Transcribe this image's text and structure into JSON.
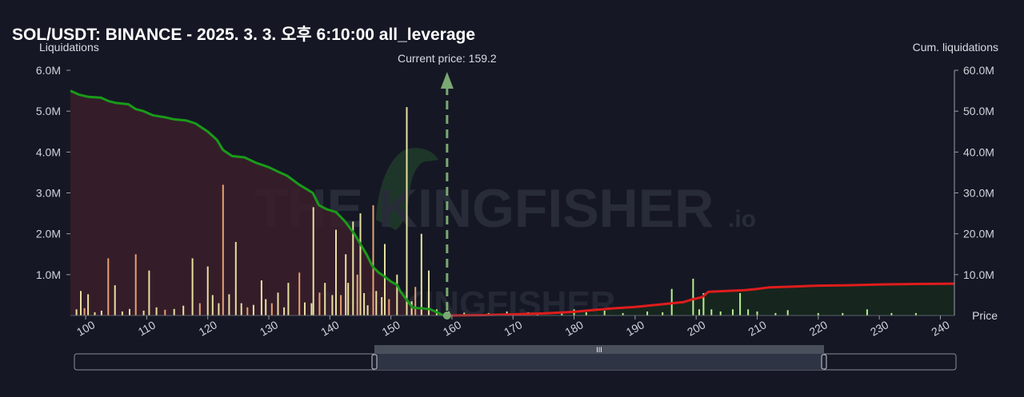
{
  "title": "SOL/USDT: BINANCE - 2025. 3. 3. 오후 6:10:00 all_leverage",
  "chart_data": {
    "type": "bar",
    "title": "SOL/USDT: BINANCE - 2025. 3. 3. 오후 6:10:00 all_leverage",
    "left_axis_label": "Liquidations",
    "right_axis_label": "Cum. liquidations",
    "xlabel": "Price",
    "current_price_label": "Current price: 159.2",
    "current_price": 159.2,
    "xlim": [
      97.5,
      242.3
    ],
    "ylim_left": [
      0,
      6000000
    ],
    "ylim_right": [
      0,
      60000000
    ],
    "x_ticks": [
      100,
      110,
      120,
      130,
      140,
      150,
      160,
      170,
      180,
      190,
      200,
      210,
      220,
      230,
      240
    ],
    "x_tick_labels": [
      "100",
      "110",
      "120",
      "130",
      "140",
      "150",
      "160",
      "170",
      "180",
      "190",
      "200",
      "210",
      "220",
      "230",
      "240"
    ],
    "y_left_ticks": [
      1000000,
      2000000,
      3000000,
      4000000,
      5000000,
      6000000
    ],
    "y_left_tick_labels": [
      "1.0M",
      "2.0M",
      "3.0M",
      "4.0M",
      "5.0M",
      "6.0M"
    ],
    "y_right_ticks": [
      10000000,
      20000000,
      30000000,
      40000000,
      50000000,
      60000000
    ],
    "y_right_tick_labels": [
      "10.0M",
      "20.0M",
      "30.0M",
      "40.0M",
      "50.0M",
      "60.0M"
    ],
    "watermark": "THE KINGFISHER",
    "watermark_suffix": ".io",
    "colors": {
      "long_bar": "#e8e0a0",
      "long_bar_alt": "#e8a070",
      "short_bar": "#b8ef90",
      "long_cum_line": "#1a9a1a",
      "short_cum_line": "#e01c1c",
      "long_fill": "#3a1f2a",
      "short_fill": "#16281e",
      "current_price_line": "#7aa873"
    },
    "series": [
      {
        "name": "long_liquidations",
        "points": [
          [
            98.5,
            150000
          ],
          [
            99.2,
            600000
          ],
          [
            99.8,
            180000
          ],
          [
            100.4,
            520000
          ],
          [
            101.5,
            80000
          ],
          [
            102.6,
            120000
          ],
          [
            103.7,
            1400000
          ],
          [
            104.8,
            740000
          ],
          [
            106.0,
            100000
          ],
          [
            107.2,
            160000
          ],
          [
            108.2,
            1500000
          ],
          [
            109.5,
            120000
          ],
          [
            110.4,
            1100000
          ],
          [
            111.6,
            200000
          ],
          [
            113.0,
            140000
          ],
          [
            114.5,
            160000
          ],
          [
            116.0,
            240000
          ],
          [
            117.5,
            1400000
          ],
          [
            118.7,
            300000
          ],
          [
            120.0,
            1200000
          ],
          [
            120.8,
            500000
          ],
          [
            121.8,
            300000
          ],
          [
            122.5,
            3200000
          ],
          [
            123.5,
            520000
          ],
          [
            124.6,
            1800000
          ],
          [
            125.5,
            300000
          ],
          [
            126.5,
            200000
          ],
          [
            127.5,
            260000
          ],
          [
            128.8,
            860000
          ],
          [
            129.5,
            400000
          ],
          [
            130.5,
            300000
          ],
          [
            131.5,
            560000
          ],
          [
            132.5,
            200000
          ],
          [
            133.2,
            800000
          ],
          [
            135.0,
            1050000
          ],
          [
            135.9,
            320000
          ],
          [
            137.0,
            300000
          ],
          [
            137.3,
            2650000
          ],
          [
            138.3,
            560000
          ],
          [
            139.2,
            800000
          ],
          [
            140.4,
            500000
          ],
          [
            141.0,
            2100000
          ],
          [
            141.8,
            500000
          ],
          [
            142.6,
            1500000
          ],
          [
            143.0,
            800000
          ],
          [
            143.8,
            2300000
          ],
          [
            144.5,
            1000000
          ],
          [
            145.0,
            2500000
          ],
          [
            145.6,
            550000
          ],
          [
            146.2,
            250000
          ],
          [
            147.1,
            2700000
          ],
          [
            147.6,
            600000
          ],
          [
            148.5,
            450000
          ],
          [
            149.0,
            1750000
          ],
          [
            149.7,
            400000
          ],
          [
            151.0,
            1000000
          ],
          [
            152.6,
            5100000
          ],
          [
            153.4,
            350000
          ],
          [
            154.0,
            700000
          ],
          [
            155.0,
            2000000
          ],
          [
            156.2,
            1100000
          ],
          [
            157.5,
            150000
          ]
        ]
      },
      {
        "name": "short_liquidations",
        "points": [
          [
            159.5,
            100000
          ],
          [
            162.0,
            70000
          ],
          [
            166.0,
            60000
          ],
          [
            169.0,
            100000
          ],
          [
            172.5,
            80000
          ],
          [
            174.0,
            60000
          ],
          [
            178.0,
            60000
          ],
          [
            180.0,
            150000
          ],
          [
            182.0,
            80000
          ],
          [
            185.0,
            120000
          ],
          [
            188.0,
            60000
          ],
          [
            192.0,
            100000
          ],
          [
            194.5,
            80000
          ],
          [
            196.0,
            650000
          ],
          [
            199.5,
            900000
          ],
          [
            200.5,
            150000
          ],
          [
            201.2,
            550000
          ],
          [
            202.5,
            150000
          ],
          [
            204.0,
            100000
          ],
          [
            206.0,
            150000
          ],
          [
            207.2,
            550000
          ],
          [
            208.5,
            150000
          ],
          [
            210.0,
            100000
          ],
          [
            213.0,
            60000
          ],
          [
            215.0,
            130000
          ],
          [
            220.0,
            60000
          ],
          [
            224.0,
            60000
          ],
          [
            228.0,
            150000
          ],
          [
            232.0,
            60000
          ],
          [
            236.0,
            60000
          ]
        ]
      },
      {
        "name": "long_cumulative",
        "points": [
          [
            97.5,
            55000000
          ],
          [
            99.0,
            54000000
          ],
          [
            100.5,
            53500000
          ],
          [
            102.5,
            53300000
          ],
          [
            103.7,
            52500000
          ],
          [
            105.0,
            52000000
          ],
          [
            107.0,
            51700000
          ],
          [
            108.2,
            50500000
          ],
          [
            109.5,
            50000000
          ],
          [
            111.0,
            49000000
          ],
          [
            113.0,
            48500000
          ],
          [
            114.5,
            48000000
          ],
          [
            116.5,
            47700000
          ],
          [
            118.0,
            47000000
          ],
          [
            120.0,
            45000000
          ],
          [
            121.5,
            43000000
          ],
          [
            122.5,
            40500000
          ],
          [
            124.0,
            39000000
          ],
          [
            126.0,
            38700000
          ],
          [
            128.0,
            37300000
          ],
          [
            130.0,
            36300000
          ],
          [
            131.5,
            35200000
          ],
          [
            133.0,
            34200000
          ],
          [
            135.0,
            32000000
          ],
          [
            137.2,
            30000000
          ],
          [
            138.2,
            27000000
          ],
          [
            139.5,
            26000000
          ],
          [
            141.0,
            25300000
          ],
          [
            142.5,
            23000000
          ],
          [
            144.0,
            20000000
          ],
          [
            145.0,
            17500000
          ],
          [
            146.0,
            15000000
          ],
          [
            147.0,
            12000000
          ],
          [
            148.0,
            10500000
          ],
          [
            149.0,
            9500000
          ],
          [
            150.0,
            8300000
          ],
          [
            151.0,
            7500000
          ],
          [
            151.5,
            6000000
          ],
          [
            152.5,
            4000000
          ],
          [
            153.5,
            2000000
          ],
          [
            154.5,
            1800000
          ],
          [
            155.5,
            1700000
          ],
          [
            156.5,
            1500000
          ],
          [
            157.5,
            800000
          ],
          [
            158.5,
            100000
          ],
          [
            159.2,
            0
          ]
        ]
      },
      {
        "name": "short_cumulative",
        "points": [
          [
            159.2,
            0
          ],
          [
            165.0,
            100000
          ],
          [
            170.0,
            300000
          ],
          [
            175.0,
            500000
          ],
          [
            180.0,
            900000
          ],
          [
            183.0,
            1300000
          ],
          [
            186.0,
            1700000
          ],
          [
            190.0,
            2100000
          ],
          [
            194.0,
            2700000
          ],
          [
            196.0,
            3000000
          ],
          [
            198.0,
            3300000
          ],
          [
            199.5,
            4000000
          ],
          [
            201.0,
            4500000
          ],
          [
            202.0,
            5800000
          ],
          [
            205.0,
            6000000
          ],
          [
            208.0,
            6200000
          ],
          [
            210.0,
            6500000
          ],
          [
            212.0,
            6900000
          ],
          [
            216.0,
            7100000
          ],
          [
            220.0,
            7300000
          ],
          [
            225.0,
            7400000
          ],
          [
            230.0,
            7600000
          ],
          [
            235.0,
            7700000
          ],
          [
            242.3,
            7800000
          ]
        ]
      }
    ]
  },
  "range_slider": {
    "handle_glyph": "III"
  }
}
